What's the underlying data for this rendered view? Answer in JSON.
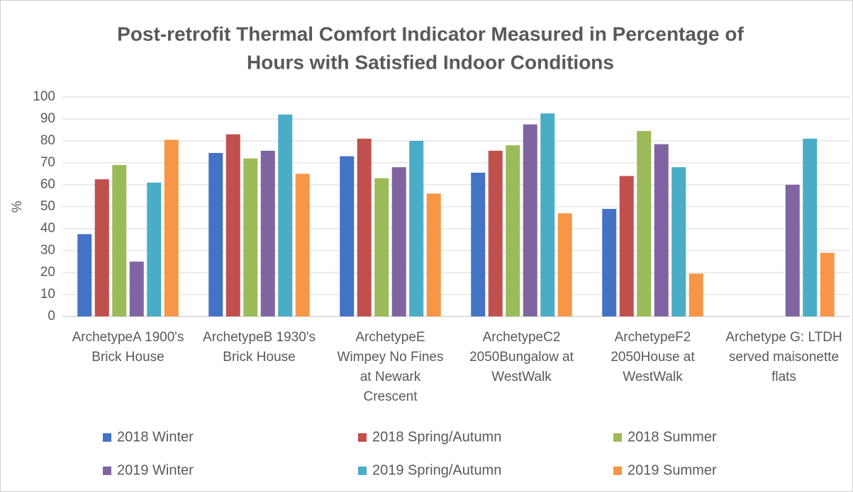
{
  "chart_data": {
    "type": "bar",
    "title": [
      "Post-retrofit Thermal Comfort Indicator Measured in Percentage of",
      "Hours with Satisfied Indoor Conditions"
    ],
    "y_label": "%",
    "categories": [
      [
        "ArchetypeA 1900's",
        "Brick House"
      ],
      [
        "ArchetypeB 1930's",
        "Brick House"
      ],
      [
        "ArchetypeE",
        "Wimpey No Fines",
        "at Newark",
        "Crescent"
      ],
      [
        "ArchetypeC2",
        "2050Bungalow at",
        "WestWalk"
      ],
      [
        "ArchetypeF2",
        "2050House at",
        "WestWalk"
      ],
      [
        "Archetype G: LTDH",
        "served maisonette",
        "flats"
      ]
    ],
    "series": [
      {
        "name": "2018 Winter",
        "color": "#4472c4",
        "values": [
          37.5,
          74.5,
          73,
          65.5,
          49,
          null
        ]
      },
      {
        "name": "2018 Spring/Autumn",
        "color": "#c0504d",
        "values": [
          62.5,
          83,
          81,
          75.5,
          64,
          null
        ]
      },
      {
        "name": "2018 Summer",
        "color": "#9bbb59",
        "values": [
          69,
          72,
          63,
          78,
          84.5,
          null
        ]
      },
      {
        "name": "2019 Winter",
        "color": "#8064a2",
        "values": [
          25,
          75.5,
          68,
          87.5,
          78.5,
          60
        ]
      },
      {
        "name": "2019 Spring/Autumn",
        "color": "#4bacc6",
        "values": [
          61,
          92,
          80,
          92.5,
          68,
          81
        ]
      },
      {
        "name": "2019 Summer",
        "color": "#f79646",
        "values": [
          80.5,
          65,
          56,
          47,
          19.5,
          29
        ]
      }
    ],
    "ylim": [
      0,
      100
    ],
    "yticks": [
      0,
      10,
      20,
      30,
      40,
      50,
      60,
      70,
      80,
      90,
      100
    ],
    "grid": true,
    "legend": "bottom"
  }
}
